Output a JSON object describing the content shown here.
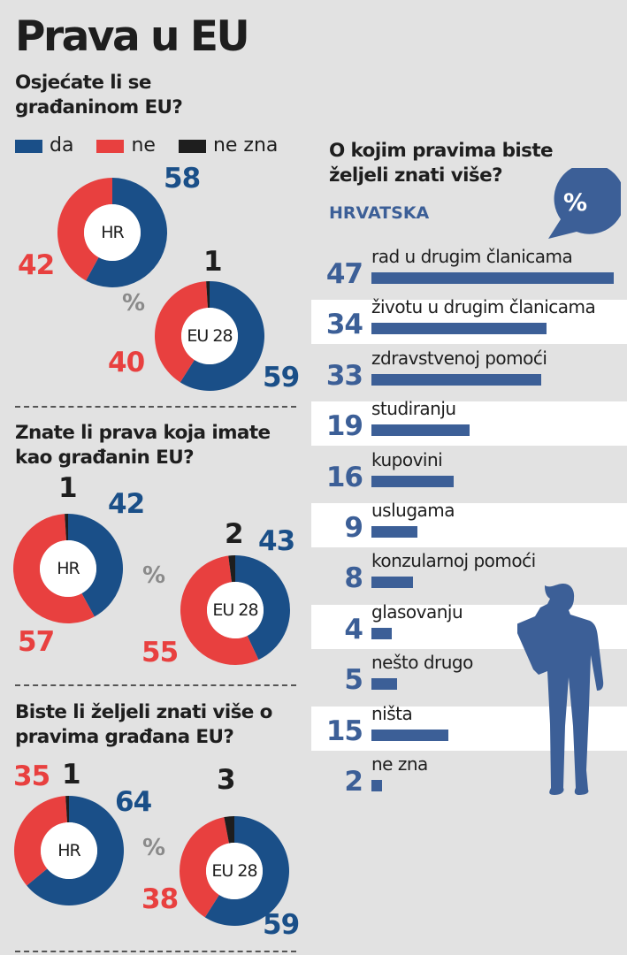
{
  "title": "Prava u EU",
  "colors": {
    "da": "#1a4f88",
    "ne": "#e8403f",
    "ne_zna": "#1e1e1e",
    "bar": "#3c5f97",
    "bg": "#e2e2e2"
  },
  "legend": [
    {
      "key": "da",
      "label": "da"
    },
    {
      "key": "ne",
      "label": "ne"
    },
    {
      "key": "ne_zna",
      "label": "ne zna"
    }
  ],
  "percent_sign": "%",
  "chart_data": [
    {
      "type": "pie",
      "title": "Osjećate li se građaninom EU?",
      "charts": [
        {
          "label": "HR",
          "values": {
            "da": 58,
            "ne": 42,
            "ne_zna": 0
          }
        },
        {
          "label": "EU 28",
          "values": {
            "da": 59,
            "ne": 40,
            "ne_zna": 1
          }
        }
      ],
      "unit": "%"
    },
    {
      "type": "pie",
      "title": "Znate li prava koja imate kao građanin EU?",
      "charts": [
        {
          "label": "HR",
          "values": {
            "da": 42,
            "ne": 57,
            "ne_zna": 1
          }
        },
        {
          "label": "EU 28",
          "values": {
            "da": 43,
            "ne": 55,
            "ne_zna": 2
          }
        }
      ],
      "unit": "%"
    },
    {
      "type": "pie",
      "title": "Biste li željeli znati više o pravima građana EU?",
      "charts": [
        {
          "label": "HR",
          "values": {
            "da": 64,
            "ne": 35,
            "ne_zna": 1
          }
        },
        {
          "label": "EU 28",
          "values": {
            "da": 59,
            "ne": 38,
            "ne_zna": 3
          }
        }
      ],
      "unit": "%"
    },
    {
      "type": "bar",
      "title": "O kojim pravima biste željeli znati više?",
      "subtitle": "HRVATSKA",
      "unit": "%",
      "categories": [
        "rad u drugim članicama",
        "životu u drugim članicama",
        "zdravstvenoj pomoći",
        "studiranju",
        "kupovini",
        "uslugama",
        "konzularnoj pomoći",
        "glasovanju",
        "nešto drugo",
        "ništa",
        "ne zna"
      ],
      "values": [
        47,
        34,
        33,
        19,
        16,
        9,
        8,
        4,
        5,
        15,
        2
      ]
    }
  ]
}
